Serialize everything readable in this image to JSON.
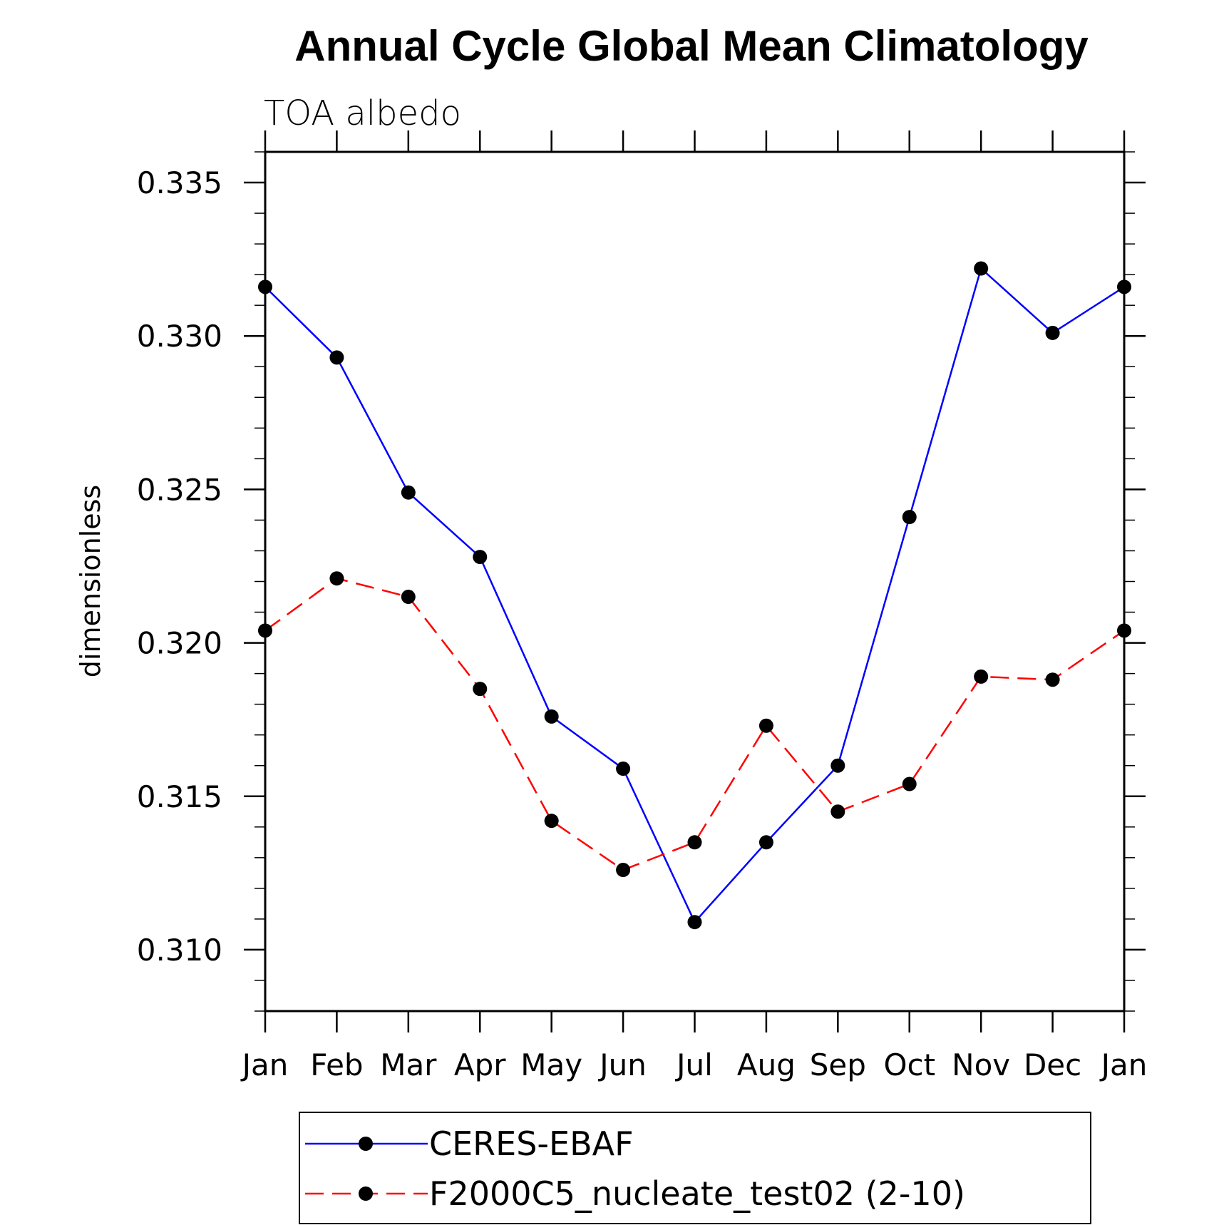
{
  "chart_data": {
    "type": "line",
    "title": "Annual Cycle Global Mean Climatology",
    "subtitle": "TOA albedo",
    "xlabel": "",
    "ylabel": "dimensionless",
    "categories": [
      "Jan",
      "Feb",
      "Mar",
      "Apr",
      "May",
      "Jun",
      "Jul",
      "Aug",
      "Sep",
      "Oct",
      "Nov",
      "Dec",
      "Jan"
    ],
    "ylim": [
      0.308,
      0.336
    ],
    "yticks": [
      0.31,
      0.315,
      0.32,
      0.325,
      0.33,
      0.335
    ],
    "ytick_labels": [
      "0.310",
      "0.315",
      "0.320",
      "0.325",
      "0.330",
      "0.335"
    ],
    "grid": false,
    "legend_position": "bottom",
    "series": [
      {
        "name": "CERES-EBAF",
        "color": "#0000ff",
        "dash": "solid",
        "marker": "filled-circle",
        "values": [
          0.3316,
          0.3293,
          0.3249,
          0.3228,
          0.3176,
          0.3159,
          0.3109,
          0.3135,
          0.316,
          0.3241,
          0.3322,
          0.3301,
          0.3316
        ]
      },
      {
        "name": "F2000C5_nucleate_test02 (2-10)",
        "color": "#ff0000",
        "dash": "dashed",
        "marker": "filled-circle",
        "values": [
          0.3204,
          0.3221,
          0.3215,
          0.3185,
          0.3142,
          0.3126,
          0.3135,
          0.3173,
          0.3145,
          0.3154,
          0.3189,
          0.3188,
          0.3204
        ]
      }
    ]
  }
}
